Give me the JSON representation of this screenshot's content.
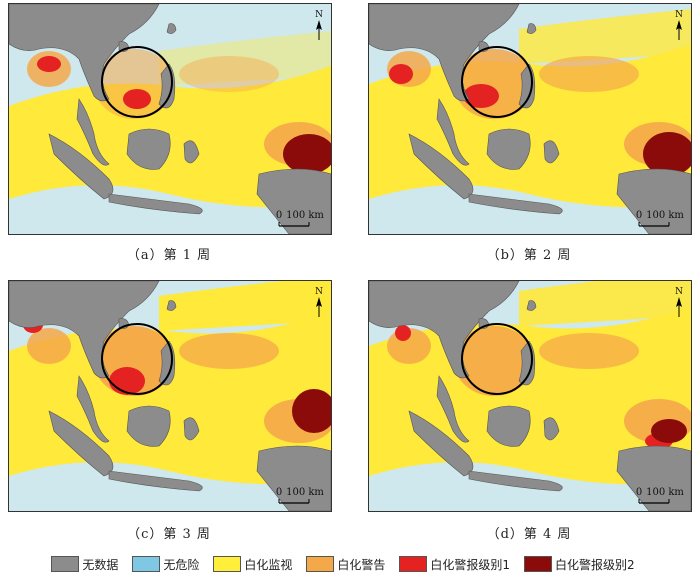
{
  "panels": [
    {
      "caption": "（a）第 1 周",
      "scale": "100 km",
      "zero": "0",
      "north": "N",
      "variant": 1
    },
    {
      "caption": "（b）第 2 周",
      "scale": "100 km",
      "zero": "0",
      "north": "N",
      "variant": 2
    },
    {
      "caption": "（c）第 3 周",
      "scale": "100 km",
      "zero": "0",
      "north": "N",
      "variant": 3
    },
    {
      "caption": "（d）第 4 周",
      "scale": "100 km",
      "zero": "0",
      "north": "N",
      "variant": 4
    }
  ],
  "legend": [
    {
      "label": "无数据",
      "color": "#8c8c8c"
    },
    {
      "label": "无危险",
      "color": "#7ec8e3"
    },
    {
      "label": "白化监视",
      "color": "#ffee3a"
    },
    {
      "label": "白化警告",
      "color": "#f5a84a"
    },
    {
      "label": "白化警报级别1",
      "color": "#e52222"
    },
    {
      "label": "白化警报级别2",
      "color": "#8b0a0a"
    }
  ],
  "colors": {
    "land": "#8c8c8c",
    "sea": "#cfe8ee",
    "watch": "#ffe93a",
    "warning": "#f5a84a",
    "alert1": "#e52222",
    "alert2": "#8b0a0a"
  }
}
